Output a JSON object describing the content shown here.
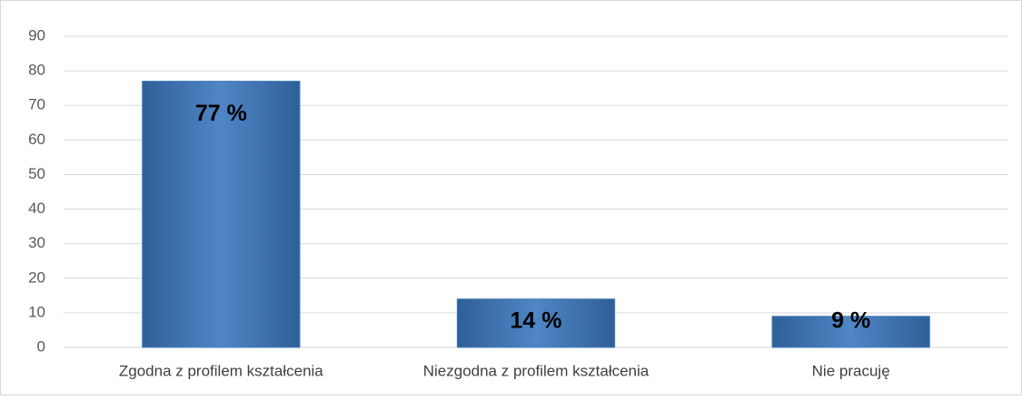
{
  "chart_data": {
    "type": "bar",
    "categories": [
      "Zgodna z profilem kształcenia",
      "Niezgodna z profilem kształcenia",
      "Nie pracuję"
    ],
    "values": [
      77,
      14,
      9
    ],
    "value_labels": [
      "77 %",
      "14 %",
      "9 %"
    ],
    "color": "#4a7ebb",
    "ylim": [
      0,
      90
    ],
    "yticks": [
      0,
      10,
      20,
      30,
      40,
      50,
      60,
      70,
      80,
      90
    ],
    "grid": true
  }
}
